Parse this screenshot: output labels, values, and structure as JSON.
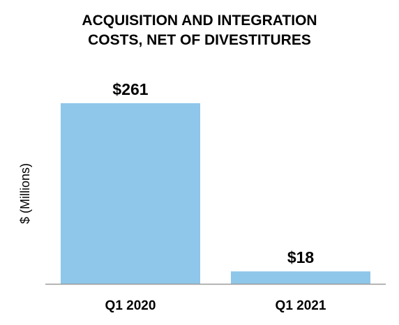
{
  "chart_data": {
    "type": "bar",
    "title_lines": [
      "ACQUISITION AND INTEGRATION",
      "COSTS, NET OF DIVESTITURES"
    ],
    "ylabel": "$ (Millions)",
    "xlabel": "",
    "categories": [
      "Q1 2020",
      "Q1 2021"
    ],
    "values": [
      261,
      18
    ],
    "data_labels": [
      "$261",
      "$18"
    ],
    "ylim": [
      0,
      261
    ],
    "grid": false,
    "legend": "none",
    "bar_color": "#8ec7ea",
    "axis_color": "#9a9a9a"
  }
}
